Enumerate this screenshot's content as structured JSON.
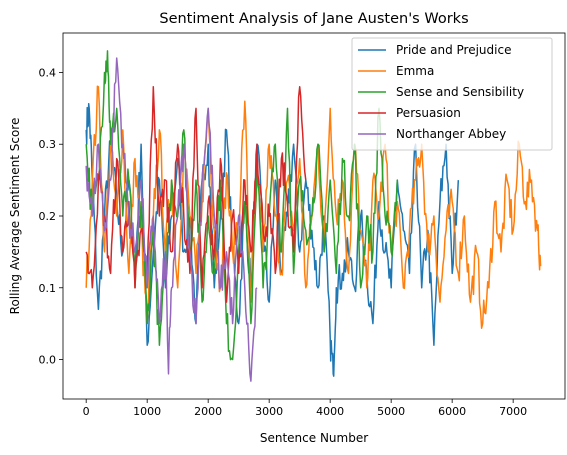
{
  "chart_data": {
    "type": "line",
    "title": "Sentiment Analysis of Jane Austen's Works",
    "xlabel": "Sentence Number",
    "ylabel": "Rolling Average Sentiment Score",
    "xlim": [
      -380,
      7850
    ],
    "ylim": [
      -0.055,
      0.455
    ],
    "xticks": [
      0,
      1000,
      2000,
      3000,
      4000,
      5000,
      6000,
      7000
    ],
    "yticks": [
      0.0,
      0.1,
      0.2,
      0.3,
      0.4
    ],
    "xtick_labels": [
      "0",
      "1000",
      "2000",
      "3000",
      "4000",
      "5000",
      "6000",
      "7000"
    ],
    "ytick_labels": [
      "0.0",
      "0.1",
      "0.2",
      "0.3",
      "0.4"
    ],
    "grid": false,
    "legend_position": "top-right",
    "series": [
      {
        "name": "Pride and Prejudice",
        "color": "#1f77b4",
        "x": [
          0,
          50,
          100,
          200,
          300,
          400,
          500,
          600,
          700,
          800,
          900,
          1000,
          1100,
          1200,
          1300,
          1400,
          1500,
          1600,
          1700,
          1800,
          1900,
          2000,
          2100,
          2200,
          2300,
          2400,
          2500,
          2600,
          2700,
          2800,
          2900,
          3000,
          3100,
          3200,
          3300,
          3400,
          3500,
          3600,
          3700,
          3800,
          3900,
          4000,
          4050,
          4100,
          4200,
          4300,
          4400,
          4500,
          4600,
          4700,
          4800,
          4900,
          5000,
          5100,
          5200,
          5300,
          5400,
          5500,
          5600,
          5700,
          5800,
          5900,
          6000,
          6100
        ],
        "values": [
          0.32,
          0.35,
          0.25,
          0.07,
          0.2,
          0.3,
          0.22,
          0.15,
          0.25,
          0.12,
          0.3,
          0.02,
          0.15,
          0.25,
          0.1,
          0.2,
          0.28,
          0.15,
          0.2,
          0.05,
          0.25,
          0.3,
          0.1,
          0.2,
          0.32,
          0.15,
          0.05,
          0.22,
          0.1,
          0.3,
          0.18,
          0.08,
          0.25,
          0.12,
          0.2,
          0.3,
          0.15,
          0.25,
          0.18,
          0.1,
          0.2,
          0.03,
          -0.02,
          0.1,
          0.12,
          0.15,
          0.1,
          0.2,
          0.12,
          0.05,
          0.22,
          0.15,
          0.1,
          0.25,
          0.18,
          0.12,
          0.3,
          0.1,
          0.18,
          0.02,
          0.22,
          0.3,
          0.12,
          0.25
        ]
      },
      {
        "name": "Emma",
        "color": "#ff7f0e",
        "x": [
          0,
          100,
          200,
          300,
          400,
          500,
          600,
          700,
          800,
          900,
          1000,
          1100,
          1200,
          1300,
          1400,
          1500,
          1600,
          1700,
          1800,
          1900,
          2000,
          2100,
          2200,
          2300,
          2400,
          2500,
          2600,
          2700,
          2800,
          2900,
          3000,
          3100,
          3200,
          3300,
          3400,
          3500,
          3600,
          3700,
          3800,
          3900,
          4000,
          4100,
          4200,
          4300,
          4400,
          4500,
          4600,
          4700,
          4800,
          4900,
          5000,
          5100,
          5200,
          5300,
          5400,
          5500,
          5600,
          5700,
          5800,
          5900,
          6000,
          6100,
          6200,
          6300,
          6400,
          6500,
          6600,
          6700,
          6800,
          6900,
          7000,
          7100,
          7200,
          7300,
          7400,
          7450
        ],
        "values": [
          0.1,
          0.25,
          0.38,
          0.15,
          0.3,
          0.2,
          0.32,
          0.12,
          0.28,
          0.18,
          0.05,
          0.2,
          0.32,
          0.15,
          0.25,
          0.1,
          0.3,
          0.2,
          0.12,
          0.22,
          0.35,
          0.18,
          0.1,
          0.26,
          0.15,
          0.2,
          0.36,
          0.08,
          0.25,
          0.15,
          0.3,
          0.2,
          0.12,
          0.25,
          0.18,
          0.28,
          0.1,
          0.2,
          0.3,
          0.15,
          0.35,
          0.2,
          0.25,
          0.12,
          0.3,
          0.18,
          0.1,
          0.25,
          0.2,
          0.3,
          0.15,
          0.22,
          0.1,
          0.18,
          0.25,
          0.3,
          0.15,
          0.2,
          0.08,
          0.18,
          0.22,
          0.12,
          0.2,
          0.08,
          0.15,
          0.05,
          0.1,
          0.22,
          0.15,
          0.25,
          0.18,
          0.3,
          0.22,
          0.25,
          0.18,
          0.13
        ]
      },
      {
        "name": "Sense and Sensibility",
        "color": "#2ca02c",
        "x": [
          0,
          100,
          200,
          300,
          350,
          400,
          500,
          600,
          700,
          800,
          900,
          1000,
          1100,
          1200,
          1300,
          1400,
          1500,
          1600,
          1700,
          1800,
          1900,
          2000,
          2100,
          2200,
          2300,
          2400,
          2500,
          2600,
          2700,
          2800,
          2900,
          3000,
          3100,
          3200,
          3300,
          3400,
          3500,
          3600,
          3700,
          3800,
          3900,
          4000,
          4100,
          4200,
          4300,
          4400,
          4500,
          4600,
          4700,
          4800,
          4900,
          5000,
          5100
        ],
        "values": [
          0.3,
          0.2,
          0.25,
          0.4,
          0.43,
          0.3,
          0.35,
          0.2,
          0.25,
          0.1,
          0.22,
          0.05,
          0.18,
          0.02,
          0.12,
          0.25,
          0.2,
          0.32,
          0.15,
          0.25,
          0.08,
          0.2,
          0.12,
          0.25,
          0.05,
          0.0,
          0.15,
          0.22,
          0.05,
          0.28,
          0.1,
          0.2,
          0.3,
          0.15,
          0.35,
          0.12,
          0.25,
          0.18,
          0.2,
          0.3,
          0.15,
          0.25,
          0.12,
          0.28,
          0.2,
          0.3,
          0.1,
          0.2,
          0.15,
          0.35,
          0.2,
          0.15,
          0.25
        ]
      },
      {
        "name": "Persuasion",
        "color": "#d62728",
        "x": [
          0,
          100,
          200,
          300,
          400,
          500,
          600,
          700,
          800,
          900,
          1000,
          1100,
          1200,
          1300,
          1400,
          1500,
          1600,
          1700,
          1800,
          1900,
          2000,
          2100,
          2200,
          2300,
          2400,
          2500,
          2600,
          2700,
          2800,
          2900,
          3000,
          3100,
          3200,
          3300,
          3400,
          3500,
          3600
        ],
        "values": [
          0.15,
          0.1,
          0.25,
          0.2,
          0.12,
          0.28,
          0.15,
          0.22,
          0.1,
          0.18,
          0.12,
          0.38,
          0.2,
          0.25,
          0.15,
          0.3,
          0.2,
          0.12,
          0.35,
          0.1,
          0.22,
          0.15,
          0.28,
          0.08,
          0.2,
          0.12,
          0.25,
          0.15,
          0.3,
          0.18,
          0.2,
          0.12,
          0.28,
          0.22,
          0.15,
          0.38,
          0.25
        ]
      },
      {
        "name": "Northanger Abbey",
        "color": "#9467bd",
        "x": [
          0,
          100,
          200,
          300,
          400,
          500,
          600,
          700,
          800,
          900,
          1000,
          1100,
          1200,
          1300,
          1350,
          1400,
          1500,
          1600,
          1700,
          1800,
          1900,
          2000,
          2100,
          2200,
          2300,
          2400,
          2500,
          2600,
          2700,
          2800
        ],
        "values": [
          0.27,
          0.2,
          0.3,
          0.18,
          0.25,
          0.42,
          0.3,
          0.2,
          0.15,
          0.25,
          0.1,
          0.2,
          0.05,
          0.15,
          -0.02,
          0.1,
          0.2,
          0.3,
          0.15,
          0.05,
          0.25,
          0.35,
          0.2,
          0.1,
          0.15,
          0.05,
          0.2,
          0.1,
          -0.03,
          0.1
        ]
      }
    ]
  }
}
